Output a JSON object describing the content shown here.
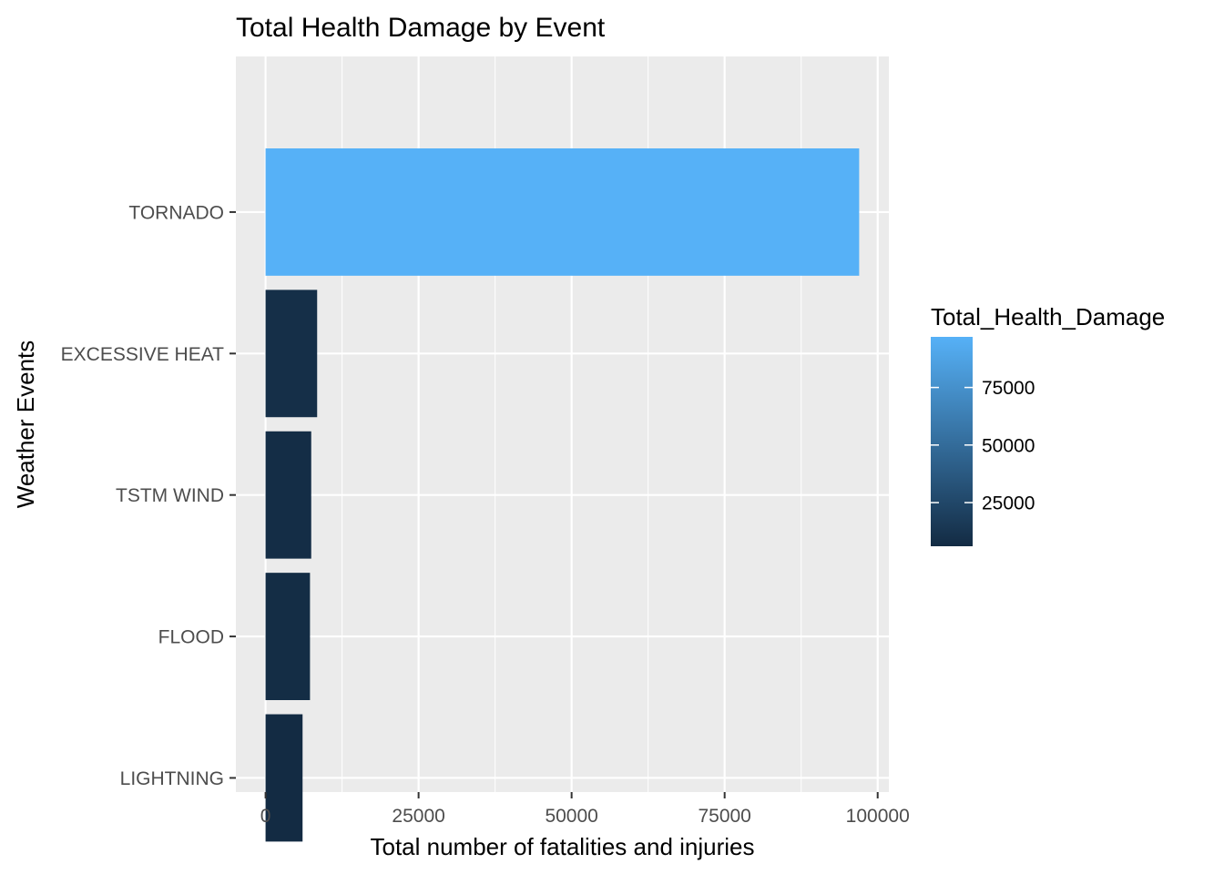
{
  "chart_data": {
    "type": "bar",
    "orientation": "horizontal",
    "title": "Total Health Damage by Event",
    "xlabel": "Total number of fatalities and injuries",
    "ylabel": "Weather Events",
    "categories": [
      "TORNADO",
      "EXCESSIVE HEAT",
      "TSTM WIND",
      "FLOOD",
      "LIGHTNING"
    ],
    "values": [
      96979,
      8428,
      7461,
      7259,
      6046
    ],
    "xlim": [
      -4849,
      101828
    ],
    "xticks": [
      0,
      25000,
      50000,
      75000,
      100000
    ],
    "xtick_labels": [
      "0",
      "25000",
      "50000",
      "75000",
      "100000"
    ],
    "grid": true,
    "panel_background": "#EBEBEB",
    "legend": {
      "title": "Total_Health_Damage",
      "placement": "right",
      "type": "colorbar",
      "low_value": 6046,
      "high_value": 96979,
      "low_color": "#132B43",
      "high_color": "#56B1F7",
      "ticks": [
        25000,
        50000,
        75000
      ],
      "tick_labels": [
        "25000",
        "50000",
        "75000"
      ]
    }
  }
}
